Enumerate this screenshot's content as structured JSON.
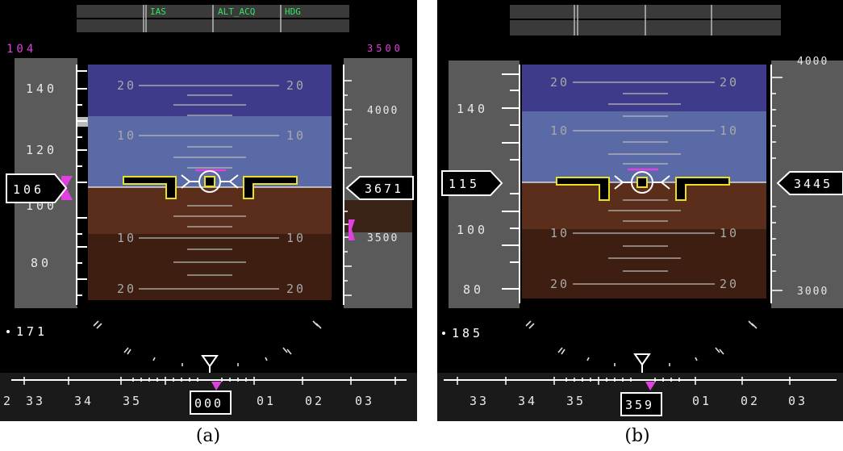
{
  "panels": [
    {
      "id": "a",
      "caption": "(a)",
      "fma": {
        "left": "IAS",
        "mid": "ALT_ACQ",
        "right": "HDG"
      },
      "speed_target": "104",
      "alt_target": "3500",
      "speed_ticks": [
        "140",
        "120",
        "80"
      ],
      "speed_box": "106",
      "speed_partial": "100",
      "alt_ticks": [
        "4000",
        "3500"
      ],
      "alt_box": "3671",
      "pitch_labels": {
        "p20": "20",
        "p10": "10",
        "m10": "10",
        "m20": "20"
      },
      "mach_or_gs": "171",
      "heading_ticks": [
        "2",
        "33",
        "34",
        "35",
        "01",
        "02",
        "03"
      ],
      "heading_box": "000"
    },
    {
      "id": "b",
      "caption": "(b)",
      "fma": {
        "left": "",
        "mid": "",
        "right": ""
      },
      "speed_target": "",
      "alt_target": "",
      "speed_ticks": [
        "140",
        "100",
        "80"
      ],
      "speed_box": "115",
      "speed_partial": "",
      "alt_ticks": [
        "4000",
        "3000"
      ],
      "alt_box": "3445",
      "pitch_labels": {
        "p20": "20",
        "p10": "10",
        "m10": "10",
        "m20": "20"
      },
      "mach_or_gs": "185",
      "heading_ticks": [
        "33",
        "34",
        "35",
        "01",
        "02",
        "03"
      ],
      "heading_box": "359"
    }
  ]
}
